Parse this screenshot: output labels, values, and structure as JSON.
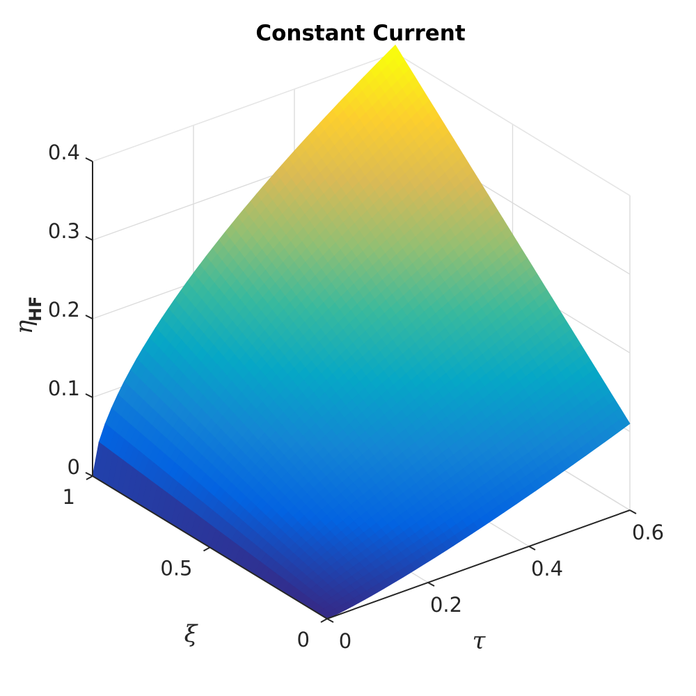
{
  "chart_data": {
    "type": "surface",
    "title": "Constant Current",
    "x_axis": {
      "label": "τ",
      "range": [
        0,
        0.6
      ],
      "ticks": [
        0,
        0.2,
        0.4,
        0.6
      ],
      "tick_labels": [
        "0",
        "0.2",
        "0.4",
        "0.6"
      ]
    },
    "y_axis": {
      "label": "ξ",
      "range": [
        0,
        1
      ],
      "ticks": [
        0,
        0.5,
        1
      ],
      "tick_labels": [
        "0",
        "0.5",
        "1"
      ]
    },
    "z_axis": {
      "label": "η",
      "label_subscript": "HF",
      "range": [
        0,
        0.4
      ],
      "ticks": [
        0,
        0.1,
        0.2,
        0.3,
        0.4
      ],
      "tick_labels": [
        "0",
        "0.1",
        "0.2",
        "0.3",
        "0.4"
      ]
    },
    "corner_values": [
      {
        "tau": 0,
        "xi": 0,
        "eta": 0
      },
      {
        "tau": 0.6,
        "xi": 0,
        "eta": 0.11
      },
      {
        "tau": 0,
        "xi": 1,
        "eta": 0
      },
      {
        "tau": 0.6,
        "xi": 1,
        "eta": 0.41
      }
    ],
    "grid": true,
    "colormap": [
      "#352a87",
      "#0363e1",
      "#1485d4",
      "#06a7c6",
      "#38b99e",
      "#92bf73",
      "#d9ba56",
      "#fcce2e",
      "#f9fb0e"
    ]
  }
}
